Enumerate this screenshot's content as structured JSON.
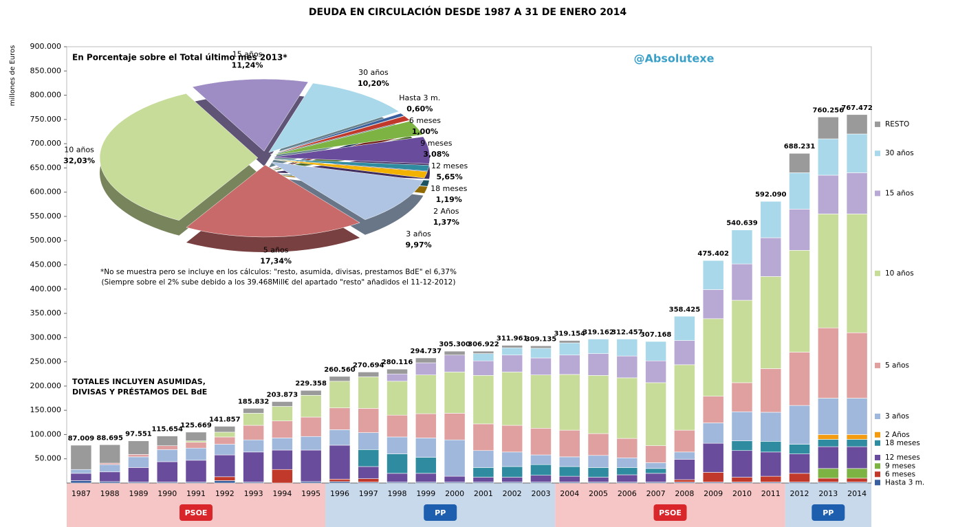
{
  "chart_data": {
    "type": "bar",
    "stacked": true,
    "title": "DEUDA EN CIRCULACIÓN DESDE 1987 A 31 DE ENERO 2014",
    "y_label": "millones de Euros",
    "watermark": "@Absolutexe",
    "annotations": [
      "TOTALES INCLUYEN ASUMIDAS,",
      "DIVISAS Y PRÉSTAMOS  DEL BdE"
    ],
    "categories": [
      "1987",
      "1988",
      "1989",
      "1990",
      "1991",
      "1992",
      "1993",
      "1994",
      "1995",
      "1996",
      "1997",
      "1998",
      "1999",
      "2000",
      "2001",
      "2002",
      "2003",
      "2004",
      "2005",
      "2006",
      "2007",
      "2008",
      "2009",
      "2010",
      "2011",
      "2012",
      "2013",
      "2014"
    ],
    "series": [
      {
        "name": "Hasta 3 m.",
        "color": "#3a5f9e",
        "values": [
          5000,
          3000,
          2000,
          2000,
          2000,
          5000,
          2000,
          0,
          3000,
          3000,
          2000,
          2000,
          2000,
          2000,
          2000,
          2000,
          2000,
          2000,
          2000,
          2000,
          2000,
          2000,
          2000,
          2000,
          2000,
          2000,
          2000,
          2000
        ]
      },
      {
        "name": "6 meses",
        "color": "#c0392b",
        "values": [
          0,
          0,
          0,
          0,
          0,
          8000,
          0,
          28000,
          0,
          5000,
          7000,
          0,
          0,
          0,
          0,
          0,
          0,
          0,
          0,
          0,
          0,
          5000,
          20000,
          10000,
          12000,
          18000,
          8000,
          8000
        ]
      },
      {
        "name": "9 meses",
        "color": "#7cb342",
        "values": [
          0,
          0,
          0,
          0,
          0,
          0,
          0,
          0,
          0,
          0,
          0,
          0,
          0,
          0,
          0,
          0,
          0,
          0,
          0,
          0,
          0,
          0,
          0,
          0,
          0,
          0,
          20000,
          20000
        ]
      },
      {
        "name": "12 meses",
        "color": "#6a4c9c",
        "values": [
          15000,
          20000,
          30000,
          42000,
          45000,
          45000,
          62000,
          40000,
          65000,
          70000,
          25000,
          18000,
          18000,
          12000,
          10000,
          10000,
          14000,
          12000,
          10000,
          15000,
          18000,
          42000,
          60000,
          55000,
          50000,
          40000,
          45000,
          45000
        ]
      },
      {
        "name": "18 meses",
        "color": "#2e8ba0",
        "values": [
          0,
          0,
          0,
          0,
          0,
          0,
          0,
          0,
          0,
          0,
          35000,
          40000,
          33000,
          0,
          20000,
          22000,
          22000,
          20000,
          20000,
          15000,
          10000,
          0,
          0,
          20000,
          22000,
          20000,
          15000,
          15000
        ]
      },
      {
        "name": "2 Años",
        "color": "#f39c12",
        "values": [
          0,
          0,
          0,
          0,
          0,
          0,
          0,
          0,
          0,
          0,
          0,
          0,
          0,
          0,
          0,
          0,
          0,
          0,
          0,
          0,
          0,
          0,
          0,
          0,
          0,
          0,
          10000,
          10000
        ]
      },
      {
        "name": "3 años",
        "color": "#9fb8dc",
        "values": [
          8000,
          15000,
          22000,
          25000,
          25000,
          22000,
          25000,
          25000,
          28000,
          32000,
          35000,
          35000,
          40000,
          75000,
          35000,
          30000,
          20000,
          20000,
          25000,
          20000,
          12000,
          15000,
          42000,
          60000,
          60000,
          80000,
          75000,
          75000
        ]
      },
      {
        "name": "5 años",
        "color": "#e0a0a0",
        "values": [
          0,
          3000,
          5000,
          8000,
          12000,
          15000,
          30000,
          35000,
          40000,
          45000,
          50000,
          45000,
          50000,
          55000,
          55000,
          55000,
          55000,
          55000,
          45000,
          40000,
          35000,
          45000,
          55000,
          60000,
          90000,
          110000,
          145000,
          135000
        ]
      },
      {
        "name": "10 años",
        "color": "#c8dc9a",
        "values": [
          0,
          0,
          0,
          0,
          3000,
          10000,
          25000,
          30000,
          45000,
          55000,
          65000,
          70000,
          80000,
          85000,
          100000,
          110000,
          110000,
          115000,
          120000,
          125000,
          130000,
          135000,
          160000,
          170000,
          190000,
          210000,
          235000,
          245000
        ]
      },
      {
        "name": "15 años",
        "color": "#b8a8d4",
        "values": [
          0,
          0,
          0,
          0,
          0,
          0,
          0,
          0,
          0,
          0,
          0,
          15000,
          25000,
          35000,
          30000,
          35000,
          35000,
          40000,
          45000,
          45000,
          45000,
          50000,
          60000,
          75000,
          80000,
          85000,
          80000,
          85000
        ]
      },
      {
        "name": "30 años",
        "color": "#a8d8ea",
        "values": [
          0,
          0,
          0,
          0,
          0,
          0,
          0,
          0,
          0,
          0,
          0,
          0,
          0,
          0,
          15000,
          15000,
          20000,
          25000,
          30000,
          35000,
          40000,
          50000,
          60000,
          70000,
          75000,
          75000,
          75000,
          80000
        ]
      },
      {
        "name": "RESTO",
        "color": "#9a9a9a",
        "values": [
          50000,
          38000,
          28000,
          20000,
          18000,
          12000,
          10000,
          10000,
          10000,
          10000,
          10000,
          10000,
          10000,
          8000,
          5000,
          5000,
          5000,
          5000,
          0,
          0,
          0,
          0,
          0,
          0,
          0,
          40000,
          45000,
          40000
        ]
      }
    ],
    "totals": {
      "values": [
        87009,
        88695,
        97551,
        115654,
        125669,
        141857,
        185832,
        203873,
        229358,
        260560,
        270694,
        280116,
        294737,
        305300,
        306922,
        311961,
        309135,
        319154,
        319162,
        312457,
        307168,
        358425,
        475402,
        540639,
        592090,
        688231,
        760256,
        767472
      ],
      "value_labels": [
        "87.009",
        "88.695",
        "97.551",
        "115.654",
        "125.669",
        "141.857",
        "185.832",
        "203.873",
        "229.358",
        "260.560",
        "270.694",
        "280.116",
        "294.737",
        "305.300",
        "306.922",
        "311.961",
        "309.135",
        "319.154",
        "319.162",
        "312.457",
        "307.168",
        "358.425",
        "475.402",
        "540.639",
        "592.090",
        "688.231",
        "760.256",
        "767.472"
      ]
    },
    "ylim": [
      0,
      900000
    ],
    "yticks": [
      {
        "value": 50000,
        "label": "50.000"
      },
      {
        "value": 100000,
        "label": "100.000"
      },
      {
        "value": 150000,
        "label": "150.000"
      },
      {
        "value": 200000,
        "label": "200.000"
      },
      {
        "value": 250000,
        "label": "250.000"
      },
      {
        "value": 300000,
        "label": "300.000"
      },
      {
        "value": 350000,
        "label": "350.000"
      },
      {
        "value": 400000,
        "label": "400.000"
      },
      {
        "value": 450000,
        "label": "450.000"
      },
      {
        "value": 500000,
        "label": "500.000"
      },
      {
        "value": 550000,
        "label": "550.000"
      },
      {
        "value": 600000,
        "label": "600.000"
      },
      {
        "value": 650000,
        "label": "650.000"
      },
      {
        "value": 700000,
        "label": "700.000"
      },
      {
        "value": 750000,
        "label": "750.000"
      },
      {
        "value": 800000,
        "label": "800.000"
      },
      {
        "value": 850000,
        "label": "850.000"
      },
      {
        "value": 900000,
        "label": "900.000"
      }
    ],
    "government": [
      {
        "label": "PSOE",
        "first": "1987",
        "last": "1995",
        "color": "#f6c6c6",
        "badge": "#d8262b"
      },
      {
        "label": "PP",
        "first": "1996",
        "last": "2003",
        "color": "#c9d9ec",
        "badge": "#1d5fae"
      },
      {
        "label": "PSOE",
        "first": "2004",
        "last": "2011",
        "color": "#f6c6c6",
        "badge": "#d8262b"
      },
      {
        "label": "PP",
        "first": "2012",
        "last": "2014",
        "color": "#c9d9ec",
        "badge": "#1d5fae"
      }
    ],
    "inset": {
      "type": "pie",
      "title": "En Porcentaje sobre el Total último mes 2013*",
      "labels": [
        "15 años",
        "30 años",
        "Hasta 3 m.",
        "6 meses",
        "9 meses",
        "12 meses",
        "18 meses",
        "2 Años",
        "3 años",
        "5 años",
        "10 años"
      ],
      "values": [
        11.24,
        10.2,
        0.6,
        1.0,
        3.08,
        5.65,
        1.19,
        1.37,
        9.97,
        17.34,
        32.03
      ],
      "value_labels": [
        "11,24%",
        "10,20%",
        "0,60%",
        "1,00%",
        "3,08%",
        "5,65%",
        "1,19%",
        "1,37%",
        "9,97%",
        "17,34%",
        "32,03%"
      ],
      "colors": [
        "#9e8cc4",
        "#a8d8ea",
        "#3a5f9e",
        "#c0392b",
        "#7cb342",
        "#6a4c9c",
        "#2e8ba0",
        "#f3b200",
        "#aec4e2",
        "#c86a6a",
        "#c8dc9a"
      ],
      "notes": [
        "*No se muestra pero se incluye en los cálculos: \"resto, asumida, divisas, prestamos  BdE\" el 6,37%",
        "(Siempre sobre el 2% sube debido a los 39.468Mill€ del apartado \"resto\" añadidos el 11-12-2012)"
      ]
    }
  }
}
